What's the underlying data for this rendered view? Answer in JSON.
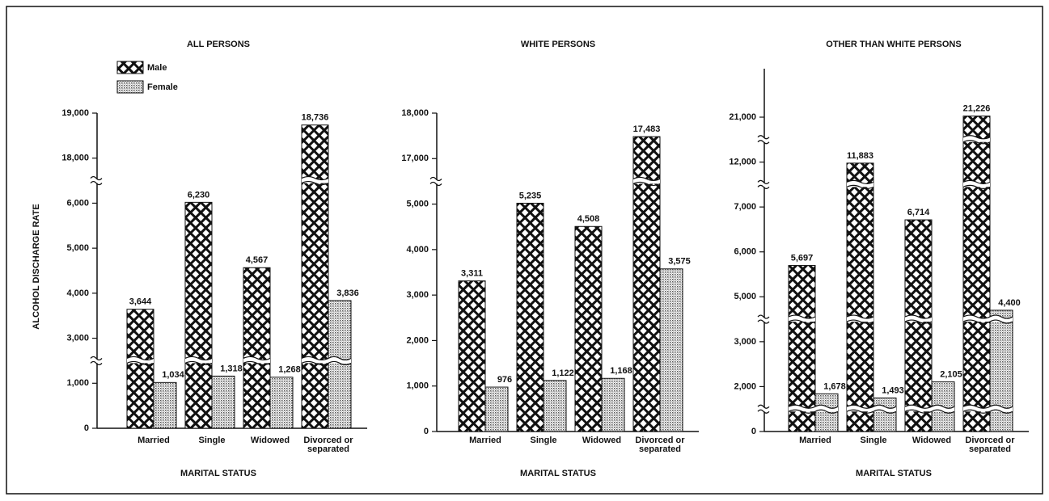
{
  "chart_data": [
    {
      "type": "bar",
      "title": "ALL PERSONS",
      "ylabel": "ALCOHOL DISCHARGE RATE",
      "xlabel": "MARITAL STATUS",
      "categories": [
        "Married",
        "Single",
        "Widowed",
        "Divorced or separated"
      ],
      "series": [
        {
          "name": "Male",
          "color": "#111111",
          "pattern": "crosshatch",
          "values": [
            3644,
            6230,
            4567,
            18736
          ],
          "value_labels": [
            "3,644",
            "6,230",
            "4,567",
            "18,736"
          ]
        },
        {
          "name": "Female",
          "color": "#555555",
          "pattern": "dots",
          "values": [
            1034,
            1318,
            1268,
            3836
          ],
          "value_labels": [
            "1,034",
            "1,318",
            "1,268",
            "3,836"
          ]
        }
      ],
      "ylim": [
        0,
        19000
      ],
      "yticks": [
        0,
        {
          "value": 1000,
          "label": "1,000"
        },
        {
          "value": 3000,
          "label": "3,000"
        },
        {
          "value": 4000,
          "label": "4,000"
        },
        {
          "value": 5000,
          "label": "5,000"
        },
        {
          "value": 6000,
          "label": "6,000"
        },
        {
          "value": 18000,
          "label": "18,000"
        },
        {
          "value": 19000,
          "label": "19,000"
        }
      ],
      "axis_breaks": true,
      "legend": "top-left"
    },
    {
      "type": "bar",
      "title": "WHITE PERSONS",
      "xlabel": "MARITAL STATUS",
      "categories": [
        "Married",
        "Single",
        "Widowed",
        "Divorced or separated"
      ],
      "series": [
        {
          "color": "#111111",
          "pattern": "crosshatch",
          "values": [
            3311,
            5235,
            4508,
            17483
          ],
          "value_labels": [
            "3,311",
            "5,235",
            "4,508",
            "17,483"
          ]
        },
        {
          "color": "#555555",
          "pattern": "dots",
          "values": [
            976,
            1122,
            1168,
            3575
          ],
          "value_labels": [
            976,
            "1,122",
            "1,168",
            "3,575"
          ]
        }
      ],
      "ylim": [
        0,
        18000
      ],
      "yticks": [
        0,
        {
          "value": 1000,
          "label": "1,000"
        },
        {
          "value": 2000,
          "label": "2,000"
        },
        {
          "value": 3000,
          "label": "3,000"
        },
        {
          "value": 4000,
          "label": "4,000"
        },
        {
          "value": 5000,
          "label": "5,000"
        },
        {
          "value": 17000,
          "label": "17,000"
        },
        {
          "value": 18000,
          "label": "18,000"
        }
      ],
      "axis_breaks": true
    },
    {
      "type": "bar",
      "title": "OTHER THAN WHITE PERSONS",
      "xlabel": "MARITAL STATUS",
      "categories": [
        "Married",
        "Single",
        "Widowed",
        "Divorced or separated"
      ],
      "series": [
        {
          "color": "#111111",
          "pattern": "crosshatch",
          "values": [
            5697,
            11883,
            6714,
            21226
          ],
          "value_labels": [
            "5,697",
            "11,883",
            "6,714",
            "21,226"
          ]
        },
        {
          "color": "#555555",
          "pattern": "dots",
          "values": [
            1678,
            1493,
            2105,
            4400
          ],
          "value_labels": [
            "1,678",
            "1,493",
            "2,105",
            "4,400"
          ]
        }
      ],
      "ylim": [
        0,
        21000
      ],
      "yticks": [
        0,
        {
          "value": 2000,
          "label": "2,000"
        },
        {
          "value": 3000,
          "label": "3,000"
        },
        {
          "value": 5000,
          "label": "5,000"
        },
        {
          "value": 6000,
          "label": "6,000"
        },
        {
          "value": 7000,
          "label": "7,000"
        },
        {
          "value": 12000,
          "label": "12,000"
        },
        {
          "value": 21000,
          "label": "21,000"
        }
      ],
      "axis_breaks": true
    }
  ]
}
